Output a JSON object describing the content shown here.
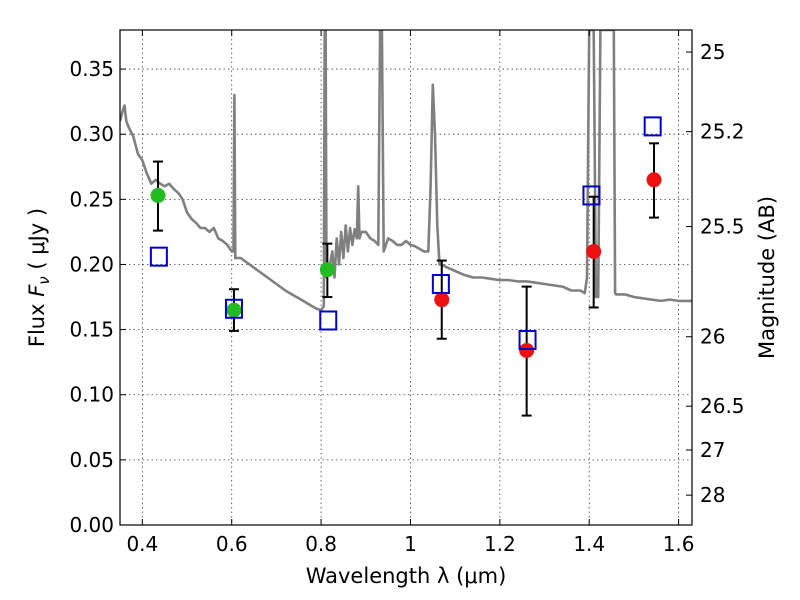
{
  "chart_data": {
    "type": "scatter",
    "xlabel": "Wavelength  λ (μm)",
    "ylabel_left": "Flux  F_ν  ( μJy )",
    "ylabel_left_parts": {
      "prefix": "Flux  ",
      "symbol": "F",
      "subscript": "ν",
      "paren_open": "  ( ",
      "unit": "μJy",
      "paren_close": " )"
    },
    "ylabel_right": "Magnitude (AB)",
    "xlim": [
      0.35,
      1.63
    ],
    "ylim": [
      0.0,
      0.38
    ],
    "x_ticks": [
      {
        "value": 0.4,
        "label": "0.4"
      },
      {
        "value": 0.6,
        "label": "0.6"
      },
      {
        "value": 0.8,
        "label": "0.8"
      },
      {
        "value": 1.0,
        "label": "1"
      },
      {
        "value": 1.2,
        "label": "1.2"
      },
      {
        "value": 1.4,
        "label": "1.4"
      },
      {
        "value": 1.6,
        "label": "1.6"
      }
    ],
    "y_ticks": [
      {
        "value": 0.0,
        "label": "0.00"
      },
      {
        "value": 0.05,
        "label": "0.05"
      },
      {
        "value": 0.1,
        "label": "0.10"
      },
      {
        "value": 0.15,
        "label": "0.15"
      },
      {
        "value": 0.2,
        "label": "0.20"
      },
      {
        "value": 0.25,
        "label": "0.25"
      },
      {
        "value": 0.3,
        "label": "0.30"
      },
      {
        "value": 0.35,
        "label": "0.35"
      }
    ],
    "right_ticks": [
      {
        "value": 25,
        "label": "25"
      },
      {
        "value": 25.2,
        "label": "25.2"
      },
      {
        "value": 25.5,
        "label": "25.5"
      },
      {
        "value": 26,
        "label": "26"
      },
      {
        "value": 26.5,
        "label": "26.5"
      },
      {
        "value": 27,
        "label": "27"
      },
      {
        "value": 28,
        "label": "28"
      }
    ],
    "grid": true,
    "colors": {
      "spectrum": "#808080",
      "green": "#22bb22",
      "red": "#ee1111",
      "blue": "#0000cc",
      "errorbar": "#000000"
    },
    "spectrum": [
      [
        0.35,
        0.31
      ],
      [
        0.356,
        0.318
      ],
      [
        0.36,
        0.322
      ],
      [
        0.364,
        0.31
      ],
      [
        0.37,
        0.305
      ],
      [
        0.38,
        0.298
      ],
      [
        0.39,
        0.285
      ],
      [
        0.4,
        0.28
      ],
      [
        0.41,
        0.27
      ],
      [
        0.42,
        0.262
      ],
      [
        0.43,
        0.265
      ],
      [
        0.44,
        0.262
      ],
      [
        0.45,
        0.26
      ],
      [
        0.46,
        0.262
      ],
      [
        0.47,
        0.258
      ],
      [
        0.48,
        0.255
      ],
      [
        0.49,
        0.25
      ],
      [
        0.5,
        0.24
      ],
      [
        0.51,
        0.235
      ],
      [
        0.52,
        0.232
      ],
      [
        0.53,
        0.228
      ],
      [
        0.54,
        0.228
      ],
      [
        0.55,
        0.225
      ],
      [
        0.56,
        0.228
      ],
      [
        0.57,
        0.22
      ],
      [
        0.58,
        0.218
      ],
      [
        0.59,
        0.215
      ],
      [
        0.6,
        0.21
      ],
      [
        0.604,
        0.21
      ],
      [
        0.606,
        0.33
      ],
      [
        0.608,
        0.205
      ],
      [
        0.62,
        0.205
      ],
      [
        0.64,
        0.2
      ],
      [
        0.66,
        0.195
      ],
      [
        0.68,
        0.19
      ],
      [
        0.7,
        0.185
      ],
      [
        0.72,
        0.18
      ],
      [
        0.74,
        0.176
      ],
      [
        0.76,
        0.172
      ],
      [
        0.78,
        0.168
      ],
      [
        0.79,
        0.166
      ],
      [
        0.8,
        0.165
      ],
      [
        0.806,
        0.168
      ],
      [
        0.808,
        0.38
      ],
      [
        0.81,
        0.38
      ],
      [
        0.812,
        0.19
      ],
      [
        0.82,
        0.2
      ],
      [
        0.825,
        0.21
      ],
      [
        0.83,
        0.19
      ],
      [
        0.835,
        0.22
      ],
      [
        0.84,
        0.2
      ],
      [
        0.845,
        0.225
      ],
      [
        0.85,
        0.205
      ],
      [
        0.855,
        0.23
      ],
      [
        0.86,
        0.21
      ],
      [
        0.865,
        0.228
      ],
      [
        0.87,
        0.215
      ],
      [
        0.875,
        0.227
      ],
      [
        0.88,
        0.22
      ],
      [
        0.883,
        0.26
      ],
      [
        0.886,
        0.22
      ],
      [
        0.89,
        0.225
      ],
      [
        0.9,
        0.225
      ],
      [
        0.91,
        0.22
      ],
      [
        0.92,
        0.218
      ],
      [
        0.928,
        0.215
      ],
      [
        0.932,
        0.38
      ],
      [
        0.936,
        0.38
      ],
      [
        0.94,
        0.21
      ],
      [
        0.95,
        0.22
      ],
      [
        0.96,
        0.218
      ],
      [
        0.97,
        0.215
      ],
      [
        0.98,
        0.215
      ],
      [
        0.99,
        0.218
      ],
      [
        1.0,
        0.215
      ],
      [
        1.01,
        0.214
      ],
      [
        1.02,
        0.212
      ],
      [
        1.03,
        0.21
      ],
      [
        1.04,
        0.21
      ],
      [
        1.045,
        0.26
      ],
      [
        1.05,
        0.338
      ],
      [
        1.055,
        0.3
      ],
      [
        1.06,
        0.23
      ],
      [
        1.065,
        0.2
      ],
      [
        1.07,
        0.2
      ],
      [
        1.08,
        0.198
      ],
      [
        1.1,
        0.195
      ],
      [
        1.12,
        0.192
      ],
      [
        1.14,
        0.19
      ],
      [
        1.16,
        0.19
      ],
      [
        1.18,
        0.189
      ],
      [
        1.2,
        0.188
      ],
      [
        1.22,
        0.188
      ],
      [
        1.24,
        0.187
      ],
      [
        1.26,
        0.187
      ],
      [
        1.28,
        0.186
      ],
      [
        1.3,
        0.185
      ],
      [
        1.32,
        0.184
      ],
      [
        1.34,
        0.183
      ],
      [
        1.36,
        0.18
      ],
      [
        1.38,
        0.18
      ],
      [
        1.39,
        0.178
      ],
      [
        1.395,
        0.19
      ],
      [
        1.4,
        0.38
      ],
      [
        1.41,
        0.38
      ],
      [
        1.415,
        0.175
      ],
      [
        1.42,
        0.175
      ],
      [
        1.425,
        0.38
      ],
      [
        1.445,
        0.38
      ],
      [
        1.455,
        0.38
      ],
      [
        1.458,
        0.178
      ],
      [
        1.46,
        0.177
      ],
      [
        1.48,
        0.177
      ],
      [
        1.5,
        0.175
      ],
      [
        1.52,
        0.174
      ],
      [
        1.54,
        0.173
      ],
      [
        1.56,
        0.172
      ],
      [
        1.58,
        0.173
      ],
      [
        1.6,
        0.172
      ],
      [
        1.63,
        0.172
      ]
    ],
    "series": [
      {
        "color": "green",
        "marker": "circle",
        "points": [
          {
            "x": 0.435,
            "y": 0.253,
            "yerr_low": 0.226,
            "yerr_high": 0.279
          },
          {
            "x": 0.605,
            "y": 0.165,
            "yerr_low": 0.149,
            "yerr_high": 0.181
          },
          {
            "x": 0.814,
            "y": 0.196,
            "yerr_low": 0.175,
            "yerr_high": 0.216
          }
        ]
      },
      {
        "color": "red",
        "marker": "circle",
        "points": [
          {
            "x": 1.07,
            "y": 0.173,
            "yerr_low": 0.143,
            "yerr_high": 0.203
          },
          {
            "x": 1.26,
            "y": 0.134,
            "yerr_low": 0.084,
            "yerr_high": 0.183
          },
          {
            "x": 1.41,
            "y": 0.21,
            "yerr_low": 0.167,
            "yerr_high": 0.252
          },
          {
            "x": 1.545,
            "y": 0.265,
            "yerr_low": 0.236,
            "yerr_high": 0.293
          }
        ]
      },
      {
        "color": "blue",
        "marker": "open-square",
        "points": [
          {
            "x": 0.437,
            "y": 0.206
          },
          {
            "x": 0.605,
            "y": 0.166
          },
          {
            "x": 0.816,
            "y": 0.157
          },
          {
            "x": 1.068,
            "y": 0.185
          },
          {
            "x": 1.262,
            "y": 0.142
          },
          {
            "x": 1.405,
            "y": 0.253
          },
          {
            "x": 1.542,
            "y": 0.306
          }
        ]
      }
    ]
  }
}
